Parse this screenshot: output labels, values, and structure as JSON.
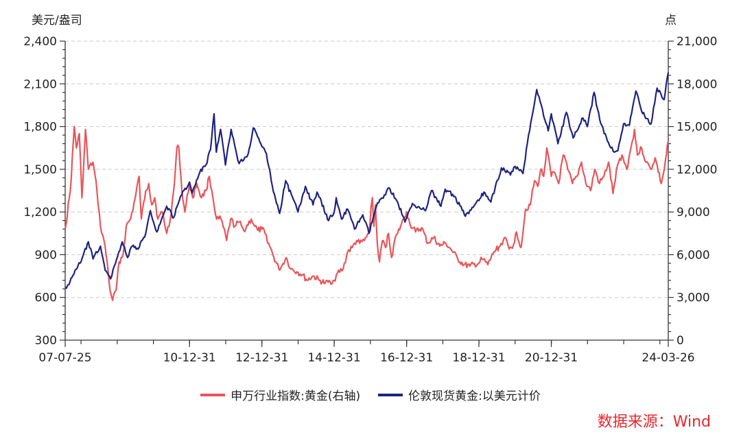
{
  "chart_data": {
    "type": "line",
    "left_unit": "美元/盎司",
    "right_unit": "点",
    "x_tick_labels": [
      "07-07-25",
      "10-12-31",
      "12-12-31",
      "14-12-31",
      "16-12-31",
      "18-12-31",
      "20-12-31",
      "24-03-26"
    ],
    "x_ticks": [
      "2007-07-25",
      "2010-12-31",
      "2012-12-31",
      "2014-12-31",
      "2016-12-31",
      "2018-12-31",
      "2020-12-31",
      "2024-03-26"
    ],
    "x_range": [
      "2007-07-25",
      "2024-03-26"
    ],
    "y_left": {
      "range": [
        300,
        2400
      ],
      "ticks": [
        300,
        600,
        900,
        1200,
        1500,
        1800,
        2100,
        2400
      ],
      "tick_labels": [
        "300",
        "600",
        "900",
        "1,200",
        "1,500",
        "1,800",
        "2,100",
        "2,400"
      ]
    },
    "y_right": {
      "range": [
        0,
        21000
      ],
      "ticks": [
        0,
        3000,
        6000,
        9000,
        12000,
        15000,
        18000,
        21000
      ],
      "tick_labels": [
        "0",
        "3,000",
        "6,000",
        "9,000",
        "12,000",
        "15,000",
        "18,000",
        "21,000"
      ]
    },
    "grid": true,
    "legend_position": "bottom",
    "series": [
      {
        "name": "申万行业指数:黄金(右轴)",
        "axis": "right",
        "color": "#e8555a",
        "points": [
          [
            "2007-07-25",
            7800
          ],
          [
            "2007-09-15",
            10500
          ],
          [
            "2007-10-25",
            15000
          ],
          [
            "2007-11-15",
            13500
          ],
          [
            "2007-12-15",
            14500
          ],
          [
            "2008-01-10",
            10000
          ],
          [
            "2008-02-15",
            14800
          ],
          [
            "2008-03-15",
            12000
          ],
          [
            "2008-05-01",
            12500
          ],
          [
            "2008-06-10",
            10500
          ],
          [
            "2008-07-15",
            8000
          ],
          [
            "2008-08-20",
            7000
          ],
          [
            "2008-09-20",
            5500
          ],
          [
            "2008-10-20",
            3500
          ],
          [
            "2008-11-15",
            2800
          ],
          [
            "2008-12-20",
            3500
          ],
          [
            "2009-01-20",
            5500
          ],
          [
            "2009-03-01",
            6000
          ],
          [
            "2009-04-01",
            8000
          ],
          [
            "2009-05-15",
            8500
          ],
          [
            "2009-07-01",
            10000
          ],
          [
            "2009-08-10",
            11500
          ],
          [
            "2009-09-01",
            8500
          ],
          [
            "2009-10-15",
            10500
          ],
          [
            "2009-11-15",
            11000
          ],
          [
            "2009-12-15",
            9500
          ],
          [
            "2010-01-15",
            10000
          ],
          [
            "2010-02-15",
            8500
          ],
          [
            "2010-04-01",
            9000
          ],
          [
            "2010-05-15",
            7500
          ],
          [
            "2010-06-20",
            8500
          ],
          [
            "2010-08-01",
            11000
          ],
          [
            "2010-08-25",
            13500
          ],
          [
            "2010-09-15",
            13500
          ],
          [
            "2010-10-15",
            10500
          ],
          [
            "2010-11-15",
            9000
          ],
          [
            "2010-12-31",
            11000
          ],
          [
            "2011-02-01",
            10000
          ],
          [
            "2011-03-15",
            11000
          ],
          [
            "2011-05-01",
            10000
          ],
          [
            "2011-06-15",
            10500
          ],
          [
            "2011-07-20",
            11500
          ],
          [
            "2011-08-25",
            10000
          ],
          [
            "2011-10-01",
            8500
          ],
          [
            "2011-11-15",
            8500
          ],
          [
            "2012-01-10",
            7000
          ],
          [
            "2012-02-20",
            8500
          ],
          [
            "2012-04-01",
            8000
          ],
          [
            "2012-05-15",
            8300
          ],
          [
            "2012-07-01",
            7700
          ],
          [
            "2012-09-15",
            8500
          ],
          [
            "2012-10-20",
            8000
          ],
          [
            "2012-11-20",
            7700
          ],
          [
            "2012-12-31",
            7800
          ],
          [
            "2013-02-01",
            7500
          ],
          [
            "2013-03-10",
            6800
          ],
          [
            "2013-04-20",
            6000
          ],
          [
            "2013-06-20",
            5000
          ],
          [
            "2013-07-20",
            5200
          ],
          [
            "2013-09-01",
            5800
          ],
          [
            "2013-10-20",
            5000
          ],
          [
            "2013-12-20",
            4800
          ],
          [
            "2014-02-10",
            4600
          ],
          [
            "2014-04-01",
            4200
          ],
          [
            "2014-06-01",
            4500
          ],
          [
            "2014-08-01",
            4200
          ],
          [
            "2014-10-01",
            4000
          ],
          [
            "2014-11-20",
            4100
          ],
          [
            "2014-12-31",
            4200
          ],
          [
            "2015-02-01",
            4700
          ],
          [
            "2015-04-01",
            5000
          ],
          [
            "2015-05-15",
            6200
          ],
          [
            "2015-07-01",
            6500
          ],
          [
            "2015-08-15",
            7000
          ],
          [
            "2015-09-15",
            6800
          ],
          [
            "2015-11-01",
            7000
          ],
          [
            "2015-12-15",
            7500
          ],
          [
            "2016-01-20",
            10000
          ],
          [
            "2016-02-05",
            8000
          ],
          [
            "2016-02-20",
            9500
          ],
          [
            "2016-03-10",
            6800
          ],
          [
            "2016-04-01",
            5500
          ],
          [
            "2016-05-01",
            7000
          ],
          [
            "2016-06-01",
            6500
          ],
          [
            "2016-07-01",
            7500
          ],
          [
            "2016-08-01",
            5800
          ],
          [
            "2016-09-01",
            7000
          ],
          [
            "2016-10-01",
            7500
          ],
          [
            "2016-11-01",
            8000
          ],
          [
            "2016-12-01",
            8500
          ],
          [
            "2016-12-31",
            9000
          ],
          [
            "2017-02-01",
            8200
          ],
          [
            "2017-04-01",
            7600
          ],
          [
            "2017-06-01",
            7900
          ],
          [
            "2017-08-01",
            6800
          ],
          [
            "2017-10-01",
            7200
          ],
          [
            "2017-12-01",
            6600
          ],
          [
            "2018-02-01",
            6800
          ],
          [
            "2018-04-01",
            6300
          ],
          [
            "2018-06-01",
            5700
          ],
          [
            "2018-08-01",
            5300
          ],
          [
            "2018-10-01",
            5200
          ],
          [
            "2018-12-31",
            5400
          ],
          [
            "2019-02-01",
            5700
          ],
          [
            "2019-04-01",
            5300
          ],
          [
            "2019-06-01",
            6200
          ],
          [
            "2019-08-01",
            6600
          ],
          [
            "2019-09-15",
            7200
          ],
          [
            "2019-11-01",
            6400
          ],
          [
            "2019-12-15",
            6700
          ],
          [
            "2020-01-15",
            7600
          ],
          [
            "2020-03-01",
            6500
          ],
          [
            "2020-04-15",
            9200
          ],
          [
            "2020-06-01",
            9500
          ],
          [
            "2020-07-15",
            11200
          ],
          [
            "2020-08-15",
            10800
          ],
          [
            "2020-09-15",
            12000
          ],
          [
            "2020-10-15",
            11500
          ],
          [
            "2020-11-15",
            13500
          ],
          [
            "2020-12-31",
            11500
          ],
          [
            "2021-02-01",
            11800
          ],
          [
            "2021-03-15",
            11000
          ],
          [
            "2021-05-01",
            13000
          ],
          [
            "2021-06-15",
            12000
          ],
          [
            "2021-08-01",
            11000
          ],
          [
            "2021-09-15",
            11500
          ],
          [
            "2021-11-01",
            12500
          ],
          [
            "2021-12-15",
            11000
          ],
          [
            "2022-02-01",
            10500
          ],
          [
            "2022-03-15",
            12000
          ],
          [
            "2022-05-01",
            11000
          ],
          [
            "2022-06-15",
            11500
          ],
          [
            "2022-08-01",
            12500
          ],
          [
            "2022-09-15",
            10300
          ],
          [
            "2022-11-01",
            12300
          ],
          [
            "2022-12-15",
            13000
          ],
          [
            "2023-02-01",
            12000
          ],
          [
            "2023-03-15",
            13500
          ],
          [
            "2023-04-20",
            14800
          ],
          [
            "2023-05-20",
            13000
          ],
          [
            "2023-07-01",
            13500
          ],
          [
            "2023-08-15",
            12500
          ],
          [
            "2023-10-01",
            12000
          ],
          [
            "2023-11-15",
            12800
          ],
          [
            "2024-01-15",
            11000
          ],
          [
            "2024-02-15",
            12000
          ],
          [
            "2024-03-26",
            14000
          ]
        ]
      },
      {
        "name": "伦敦现货黄金:以美元计价",
        "axis": "left",
        "color": "#1f237d",
        "points": [
          [
            "2007-07-25",
            670
          ],
          [
            "2007-09-01",
            690
          ],
          [
            "2007-11-01",
            790
          ],
          [
            "2008-01-01",
            850
          ],
          [
            "2008-03-15",
            990
          ],
          [
            "2008-05-01",
            870
          ],
          [
            "2008-07-15",
            960
          ],
          [
            "2008-09-01",
            790
          ],
          [
            "2008-10-25",
            730
          ],
          [
            "2008-12-01",
            820
          ],
          [
            "2009-02-20",
            990
          ],
          [
            "2009-04-15",
            880
          ],
          [
            "2009-06-01",
            960
          ],
          [
            "2009-08-01",
            940
          ],
          [
            "2009-10-15",
            1050
          ],
          [
            "2009-12-01",
            1210
          ],
          [
            "2010-02-05",
            1060
          ],
          [
            "2010-05-15",
            1240
          ],
          [
            "2010-07-25",
            1160
          ],
          [
            "2010-10-01",
            1310
          ],
          [
            "2010-12-31",
            1410
          ],
          [
            "2011-01-25",
            1330
          ],
          [
            "2011-04-15",
            1480
          ],
          [
            "2011-06-15",
            1530
          ],
          [
            "2011-08-01",
            1640
          ],
          [
            "2011-09-05",
            1890
          ],
          [
            "2011-09-28",
            1620
          ],
          [
            "2011-11-10",
            1780
          ],
          [
            "2011-12-29",
            1530
          ],
          [
            "2012-02-25",
            1780
          ],
          [
            "2012-05-15",
            1540
          ],
          [
            "2012-08-15",
            1610
          ],
          [
            "2012-10-05",
            1790
          ],
          [
            "2012-12-31",
            1660
          ],
          [
            "2013-02-15",
            1610
          ],
          [
            "2013-04-16",
            1380
          ],
          [
            "2013-06-28",
            1190
          ],
          [
            "2013-08-28",
            1420
          ],
          [
            "2013-12-31",
            1200
          ],
          [
            "2014-03-15",
            1380
          ],
          [
            "2014-06-01",
            1250
          ],
          [
            "2014-07-10",
            1340
          ],
          [
            "2014-11-05",
            1140
          ],
          [
            "2014-12-31",
            1200
          ],
          [
            "2015-01-20",
            1300
          ],
          [
            "2015-03-15",
            1150
          ],
          [
            "2015-05-15",
            1220
          ],
          [
            "2015-07-24",
            1080
          ],
          [
            "2015-10-15",
            1180
          ],
          [
            "2015-12-17",
            1050
          ],
          [
            "2016-03-01",
            1240
          ],
          [
            "2016-07-06",
            1370
          ],
          [
            "2016-10-01",
            1270
          ],
          [
            "2016-12-15",
            1130
          ],
          [
            "2017-02-28",
            1260
          ],
          [
            "2017-07-10",
            1210
          ],
          [
            "2017-09-08",
            1350
          ],
          [
            "2017-12-12",
            1240
          ],
          [
            "2018-01-25",
            1360
          ],
          [
            "2018-05-01",
            1310
          ],
          [
            "2018-08-16",
            1170
          ],
          [
            "2018-12-31",
            1280
          ],
          [
            "2019-02-20",
            1340
          ],
          [
            "2019-05-01",
            1270
          ],
          [
            "2019-08-15",
            1510
          ],
          [
            "2019-11-15",
            1460
          ],
          [
            "2019-12-31",
            1520
          ],
          [
            "2020-03-20",
            1470
          ],
          [
            "2020-05-15",
            1740
          ],
          [
            "2020-08-06",
            2060
          ],
          [
            "2020-11-30",
            1770
          ],
          [
            "2020-12-31",
            1890
          ],
          [
            "2021-03-08",
            1680
          ],
          [
            "2021-06-01",
            1900
          ],
          [
            "2021-08-09",
            1720
          ],
          [
            "2021-11-15",
            1860
          ],
          [
            "2021-12-31",
            1800
          ],
          [
            "2022-03-08",
            2040
          ],
          [
            "2022-05-15",
            1820
          ],
          [
            "2022-07-20",
            1700
          ],
          [
            "2022-09-28",
            1620
          ],
          [
            "2022-11-03",
            1630
          ],
          [
            "2022-12-31",
            1820
          ],
          [
            "2023-02-28",
            1810
          ],
          [
            "2023-05-04",
            2050
          ],
          [
            "2023-06-30",
            1910
          ],
          [
            "2023-10-05",
            1820
          ],
          [
            "2023-12-04",
            2070
          ],
          [
            "2024-02-14",
            1990
          ],
          [
            "2024-03-26",
            2180
          ]
        ]
      }
    ]
  },
  "legend": {
    "items": [
      {
        "label": "申万行业指数:黄金(右轴)",
        "color": "#e8555a"
      },
      {
        "label": "伦敦现货黄金:以美元计价",
        "color": "#1f237d"
      }
    ]
  },
  "source": "数据来源：Wind"
}
